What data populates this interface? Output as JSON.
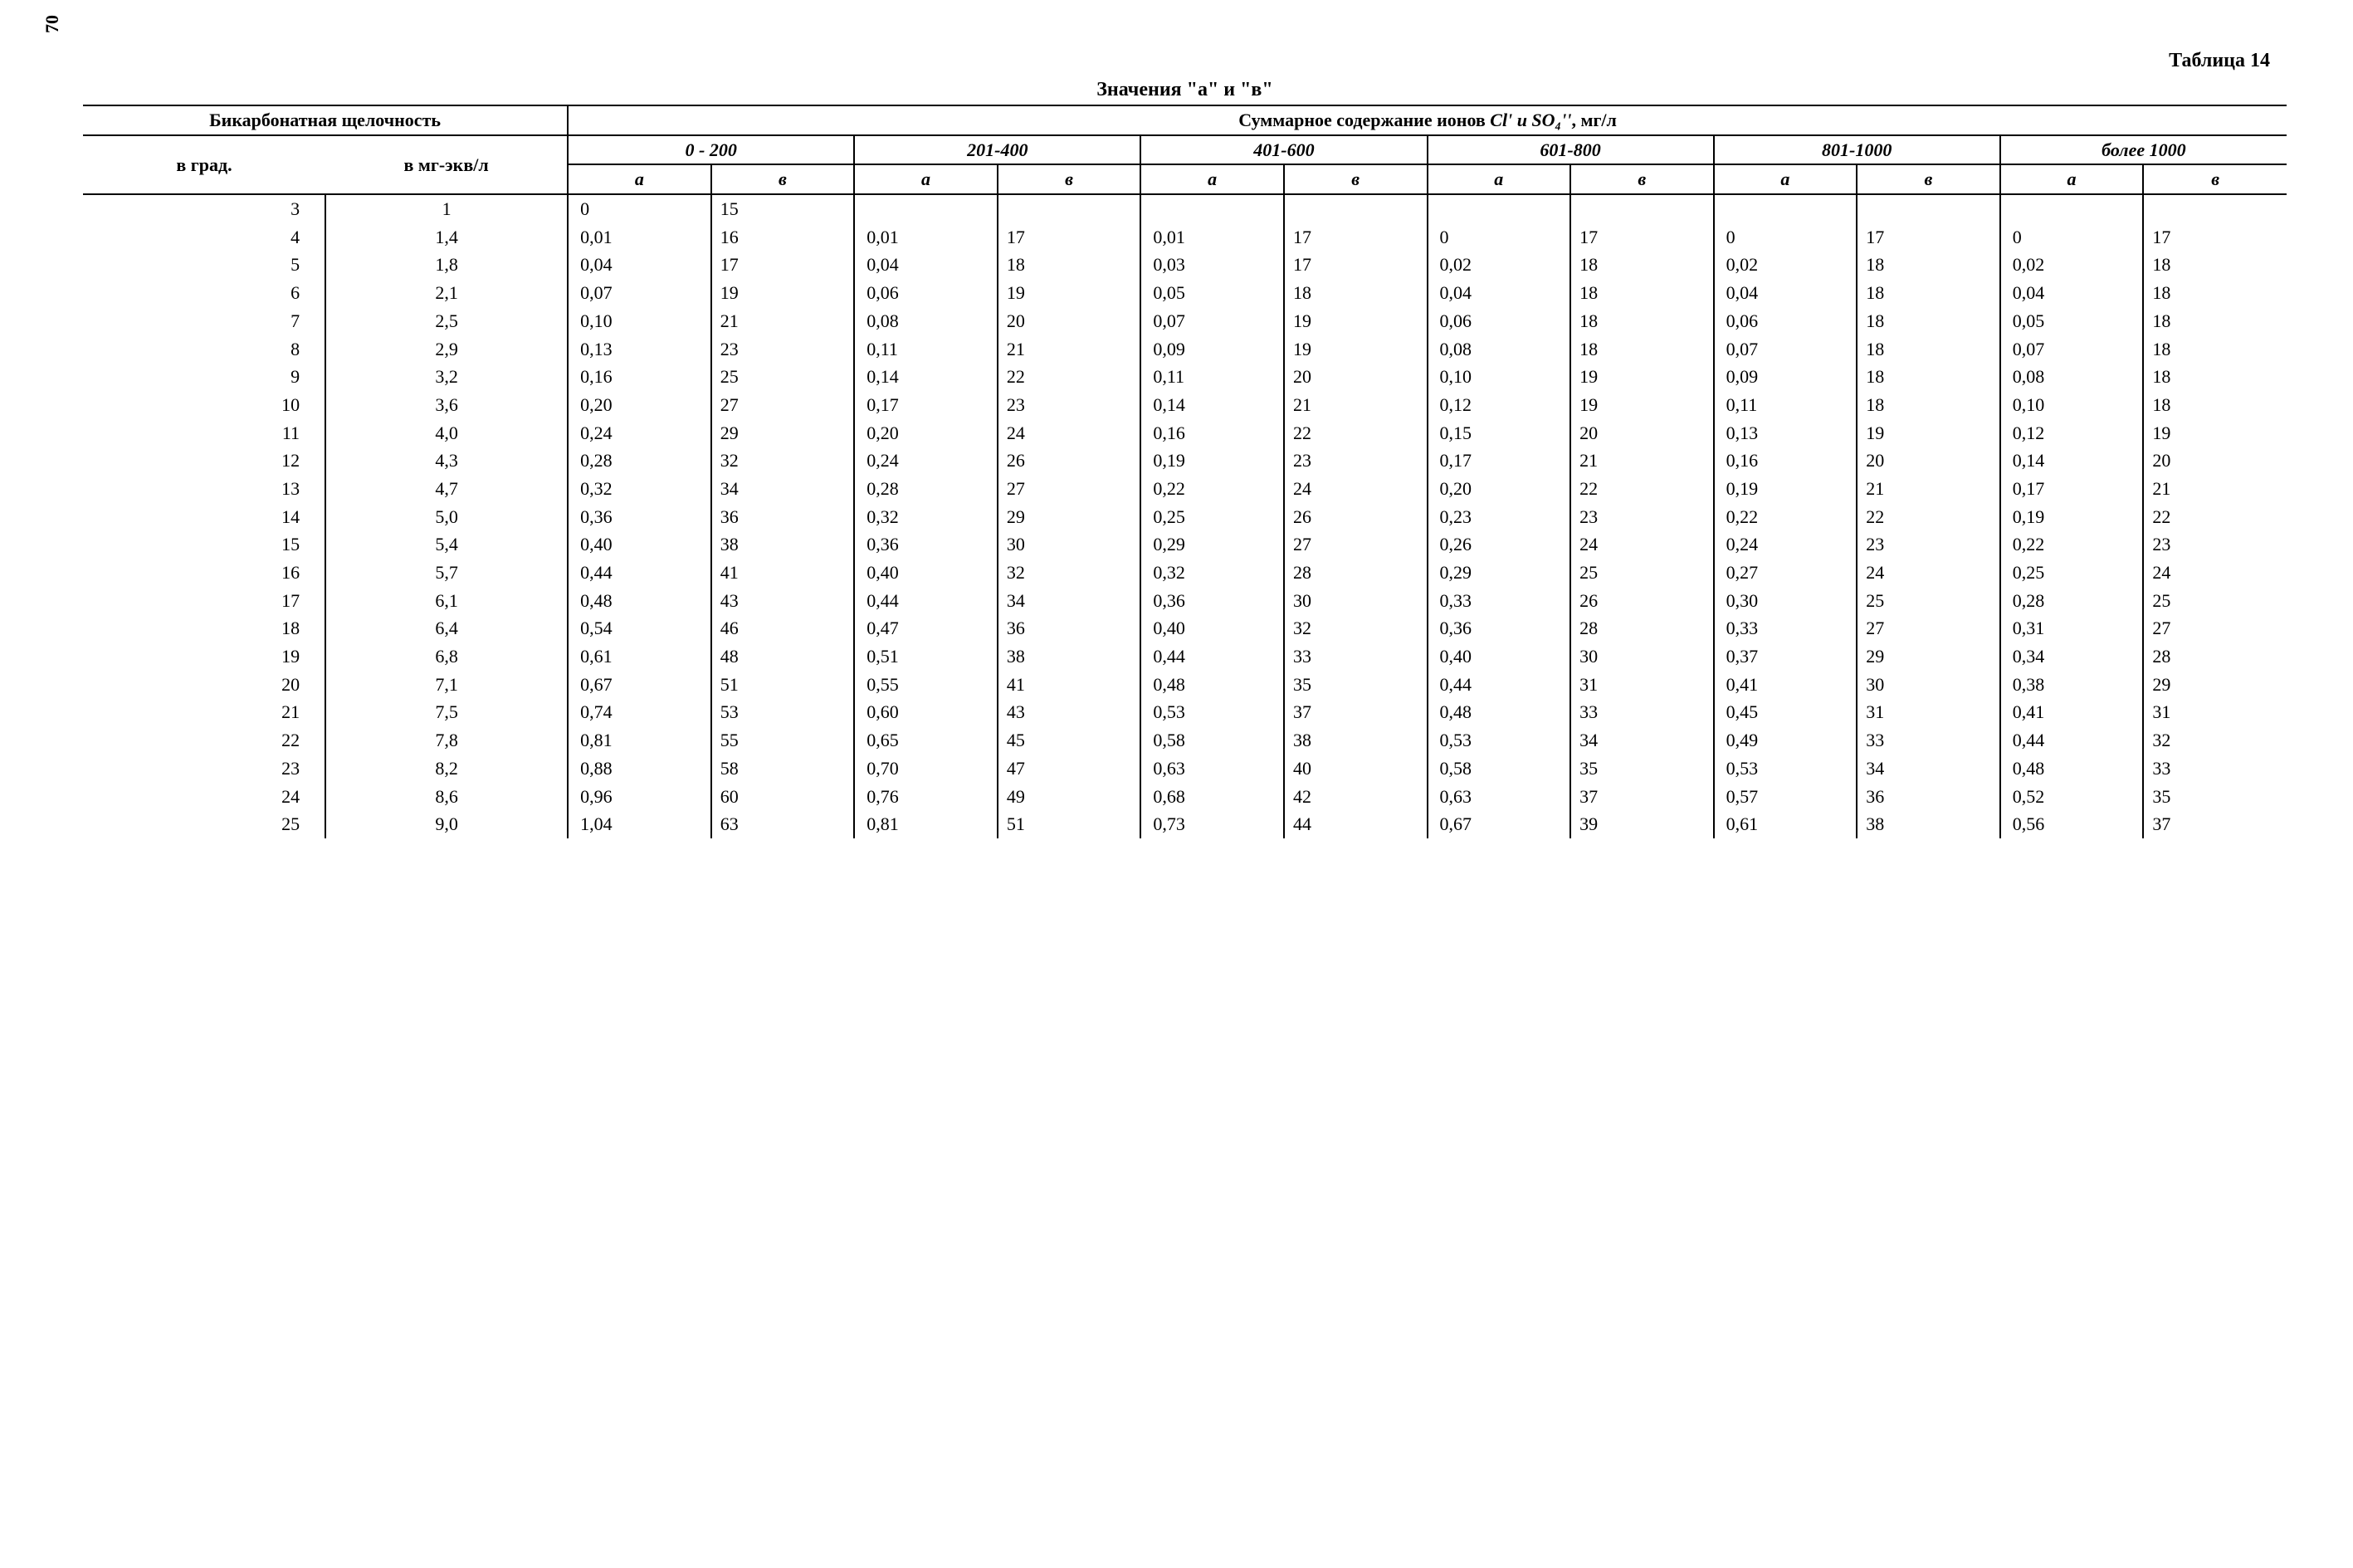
{
  "page_number": "70",
  "table_label": "Таблица 14",
  "table_title": "Значения \"а\" и \"в\"",
  "header_left": "Бикарбонатная щелочность",
  "header_right_prefix": "Суммарное содержание ионов ",
  "header_right_formula": "Cl' и SO₄''",
  "header_right_unit": ", мг/л",
  "sub_left_1": "в град.",
  "sub_left_2": "в мг-экв/л",
  "ranges": [
    "0 - 200",
    "201-400",
    "401-600",
    "601-800",
    "801-1000",
    "более 1000"
  ],
  "ab_labels": {
    "a": "а",
    "b": "в"
  },
  "rows": [
    {
      "grad": "3",
      "mge": "1",
      "c": [
        [
          "0",
          "15"
        ],
        [
          "",
          ""
        ],
        [
          "",
          ""
        ],
        [
          "",
          ""
        ],
        [
          "",
          ""
        ],
        [
          "",
          ""
        ]
      ]
    },
    {
      "grad": "4",
      "mge": "1,4",
      "c": [
        [
          "0,01",
          "16"
        ],
        [
          "0,01",
          "17"
        ],
        [
          "0,01",
          "17"
        ],
        [
          "0",
          "17"
        ],
        [
          "0",
          "17"
        ],
        [
          "0",
          "17"
        ]
      ]
    },
    {
      "grad": "5",
      "mge": "1,8",
      "c": [
        [
          "0,04",
          "17"
        ],
        [
          "0,04",
          "18"
        ],
        [
          "0,03",
          "17"
        ],
        [
          "0,02",
          "18"
        ],
        [
          "0,02",
          "18"
        ],
        [
          "0,02",
          "18"
        ]
      ]
    },
    {
      "grad": "6",
      "mge": "2,1",
      "c": [
        [
          "0,07",
          "19"
        ],
        [
          "0,06",
          "19"
        ],
        [
          "0,05",
          "18"
        ],
        [
          "0,04",
          "18"
        ],
        [
          "0,04",
          "18"
        ],
        [
          "0,04",
          "18"
        ]
      ]
    },
    {
      "grad": "7",
      "mge": "2,5",
      "c": [
        [
          "0,10",
          "21"
        ],
        [
          "0,08",
          "20"
        ],
        [
          "0,07",
          "19"
        ],
        [
          "0,06",
          "18"
        ],
        [
          "0,06",
          "18"
        ],
        [
          "0,05",
          "18"
        ]
      ]
    },
    {
      "grad": "8",
      "mge": "2,9",
      "c": [
        [
          "0,13",
          "23"
        ],
        [
          "0,11",
          "21"
        ],
        [
          "0,09",
          "19"
        ],
        [
          "0,08",
          "18"
        ],
        [
          "0,07",
          "18"
        ],
        [
          "0,07",
          "18"
        ]
      ]
    },
    {
      "grad": "9",
      "mge": "3,2",
      "c": [
        [
          "0,16",
          "25"
        ],
        [
          "0,14",
          "22"
        ],
        [
          "0,11",
          "20"
        ],
        [
          "0,10",
          "19"
        ],
        [
          "0,09",
          "18"
        ],
        [
          "0,08",
          "18"
        ]
      ]
    },
    {
      "grad": "10",
      "mge": "3,6",
      "c": [
        [
          "0,20",
          "27"
        ],
        [
          "0,17",
          "23"
        ],
        [
          "0,14",
          "21"
        ],
        [
          "0,12",
          "19"
        ],
        [
          "0,11",
          "18"
        ],
        [
          "0,10",
          "18"
        ]
      ]
    },
    {
      "grad": "11",
      "mge": "4,0",
      "c": [
        [
          "0,24",
          "29"
        ],
        [
          "0,20",
          "24"
        ],
        [
          "0,16",
          "22"
        ],
        [
          "0,15",
          "20"
        ],
        [
          "0,13",
          "19"
        ],
        [
          "0,12",
          "19"
        ]
      ]
    },
    {
      "grad": "12",
      "mge": "4,3",
      "c": [
        [
          "0,28",
          "32"
        ],
        [
          "0,24",
          "26"
        ],
        [
          "0,19",
          "23"
        ],
        [
          "0,17",
          "21"
        ],
        [
          "0,16",
          "20"
        ],
        [
          "0,14",
          "20"
        ]
      ]
    },
    {
      "grad": "13",
      "mge": "4,7",
      "c": [
        [
          "0,32",
          "34"
        ],
        [
          "0,28",
          "27"
        ],
        [
          "0,22",
          "24"
        ],
        [
          "0,20",
          "22"
        ],
        [
          "0,19",
          "21"
        ],
        [
          "0,17",
          "21"
        ]
      ]
    },
    {
      "grad": "14",
      "mge": "5,0",
      "c": [
        [
          "0,36",
          "36"
        ],
        [
          "0,32",
          "29"
        ],
        [
          "0,25",
          "26"
        ],
        [
          "0,23",
          "23"
        ],
        [
          "0,22",
          "22"
        ],
        [
          "0,19",
          "22"
        ]
      ]
    },
    {
      "grad": "15",
      "mge": "5,4",
      "c": [
        [
          "0,40",
          "38"
        ],
        [
          "0,36",
          "30"
        ],
        [
          "0,29",
          "27"
        ],
        [
          "0,26",
          "24"
        ],
        [
          "0,24",
          "23"
        ],
        [
          "0,22",
          "23"
        ]
      ]
    },
    {
      "grad": "16",
      "mge": "5,7",
      "c": [
        [
          "0,44",
          "41"
        ],
        [
          "0,40",
          "32"
        ],
        [
          "0,32",
          "28"
        ],
        [
          "0,29",
          "25"
        ],
        [
          "0,27",
          "24"
        ],
        [
          "0,25",
          "24"
        ]
      ]
    },
    {
      "grad": "17",
      "mge": "6,1",
      "c": [
        [
          "0,48",
          "43"
        ],
        [
          "0,44",
          "34"
        ],
        [
          "0,36",
          "30"
        ],
        [
          "0,33",
          "26"
        ],
        [
          "0,30",
          "25"
        ],
        [
          "0,28",
          "25"
        ]
      ]
    },
    {
      "grad": "18",
      "mge": "6,4",
      "c": [
        [
          "0,54",
          "46"
        ],
        [
          "0,47",
          "36"
        ],
        [
          "0,40",
          "32"
        ],
        [
          "0,36",
          "28"
        ],
        [
          "0,33",
          "27"
        ],
        [
          "0,31",
          "27"
        ]
      ]
    },
    {
      "grad": "19",
      "mge": "6,8",
      "c": [
        [
          "0,61",
          "48"
        ],
        [
          "0,51",
          "38"
        ],
        [
          "0,44",
          "33"
        ],
        [
          "0,40",
          "30"
        ],
        [
          "0,37",
          "29"
        ],
        [
          "0,34",
          "28"
        ]
      ]
    },
    {
      "grad": "20",
      "mge": "7,1",
      "c": [
        [
          "0,67",
          "51"
        ],
        [
          "0,55",
          "41"
        ],
        [
          "0,48",
          "35"
        ],
        [
          "0,44",
          "31"
        ],
        [
          "0,41",
          "30"
        ],
        [
          "0,38",
          "29"
        ]
      ]
    },
    {
      "grad": "21",
      "mge": "7,5",
      "c": [
        [
          "0,74",
          "53"
        ],
        [
          "0,60",
          "43"
        ],
        [
          "0,53",
          "37"
        ],
        [
          "0,48",
          "33"
        ],
        [
          "0,45",
          "31"
        ],
        [
          "0,41",
          "31"
        ]
      ]
    },
    {
      "grad": "22",
      "mge": "7,8",
      "c": [
        [
          "0,81",
          "55"
        ],
        [
          "0,65",
          "45"
        ],
        [
          "0,58",
          "38"
        ],
        [
          "0,53",
          "34"
        ],
        [
          "0,49",
          "33"
        ],
        [
          "0,44",
          "32"
        ]
      ]
    },
    {
      "grad": "23",
      "mge": "8,2",
      "c": [
        [
          "0,88",
          "58"
        ],
        [
          "0,70",
          "47"
        ],
        [
          "0,63",
          "40"
        ],
        [
          "0,58",
          "35"
        ],
        [
          "0,53",
          "34"
        ],
        [
          "0,48",
          "33"
        ]
      ]
    },
    {
      "grad": "24",
      "mge": "8,6",
      "c": [
        [
          "0,96",
          "60"
        ],
        [
          "0,76",
          "49"
        ],
        [
          "0,68",
          "42"
        ],
        [
          "0,63",
          "37"
        ],
        [
          "0,57",
          "36"
        ],
        [
          "0,52",
          "35"
        ]
      ]
    },
    {
      "grad": "25",
      "mge": "9,0",
      "c": [
        [
          "1,04",
          "63"
        ],
        [
          "0,81",
          "51"
        ],
        [
          "0,73",
          "44"
        ],
        [
          "0,67",
          "39"
        ],
        [
          "0,61",
          "38"
        ],
        [
          "0,56",
          "37"
        ]
      ]
    }
  ]
}
